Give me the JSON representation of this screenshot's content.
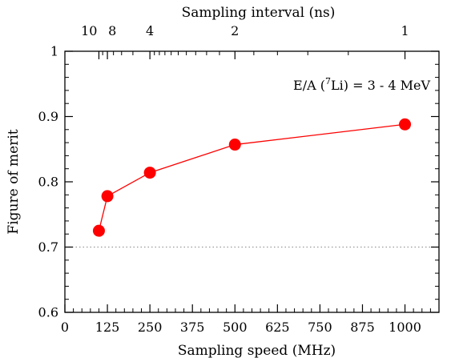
{
  "chart_data": {
    "type": "line",
    "xlabel": "Sampling speed (MHz)",
    "ylabel": "Figure of merit",
    "top_xlabel": "Sampling interval (ns)",
    "annotation": {
      "prefix": "E/A (",
      "superscript": "7",
      "element": "Li",
      "suffix": ") = 3 - 4 MeV"
    },
    "xlim": [
      0,
      1100
    ],
    "ylim": [
      0.6,
      1.0
    ],
    "x_ticks": [
      0,
      125,
      250,
      375,
      500,
      625,
      750,
      875,
      1000
    ],
    "x_tick_labels": [
      "0",
      "125",
      "250",
      "375",
      "500",
      "625",
      "750",
      "875",
      "1000"
    ],
    "y_ticks": [
      0.6,
      0.7,
      0.8,
      0.9,
      1.0
    ],
    "y_tick_labels": [
      "0.6",
      "0.7",
      "0.8",
      "0.9",
      "1"
    ],
    "top_ticks": [
      {
        "label": "10",
        "interval_ns": 10
      },
      {
        "label": "8",
        "interval_ns": 8
      },
      {
        "label": "4",
        "interval_ns": 4
      },
      {
        "label": "2",
        "interval_ns": 2
      },
      {
        "label": "1",
        "interval_ns": 1
      }
    ],
    "reference_line": {
      "y": 0.7,
      "style": "dotted"
    },
    "series": [
      {
        "x": [
          100,
          125,
          250,
          500,
          1000
        ],
        "y": [
          0.725,
          0.778,
          0.814,
          0.857,
          0.888
        ],
        "color": "#ff0000"
      }
    ],
    "grid": false
  }
}
